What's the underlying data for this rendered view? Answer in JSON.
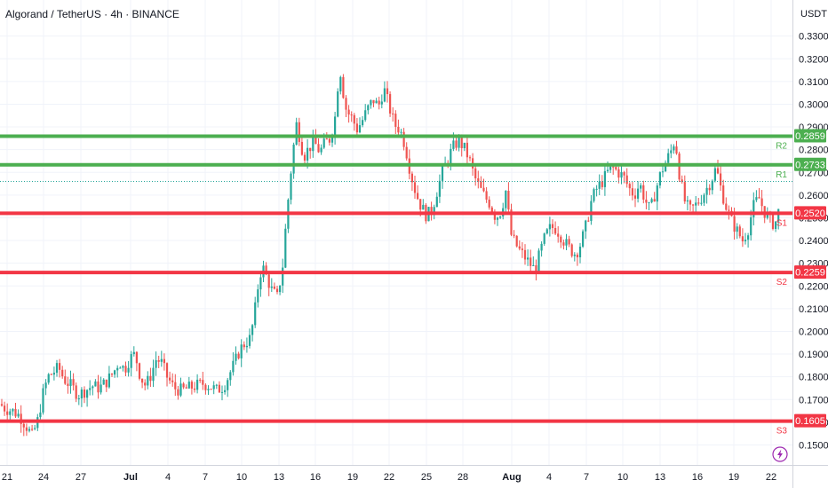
{
  "header": {
    "title": "Algorand / TetherUS · 4h · BINANCE",
    "currency": "USDT"
  },
  "colors": {
    "up": "#26a69a",
    "down": "#ef5350",
    "resistance": "#4caf50",
    "support": "#f23645",
    "grid": "#f0f3fa",
    "axis_text": "#131722",
    "alert_icon": "#9c27b0"
  },
  "icons": {
    "alert": "lightning-bolt-icon"
  },
  "chart_data": {
    "type": "candlestick",
    "title": "Algorand / TetherUS · 4h · BINANCE",
    "ylabel": "USDT",
    "ylim": [
      0.146,
      0.341
    ],
    "grid": true,
    "yticks": [
      "0.1500",
      "0.1600",
      "0.1700",
      "0.1800",
      "0.1900",
      "0.2000",
      "0.2100",
      "0.2200",
      "0.2300",
      "0.2400",
      "0.2500",
      "0.2600",
      "0.2700",
      "0.2800",
      "0.2900",
      "0.3000",
      "0.3100",
      "0.3200",
      "0.3300"
    ],
    "xticks": [
      {
        "label": "21",
        "bold": false
      },
      {
        "label": "24",
        "bold": false
      },
      {
        "label": "27",
        "bold": false
      },
      {
        "label": "Jul",
        "bold": true
      },
      {
        "label": "4",
        "bold": false
      },
      {
        "label": "7",
        "bold": false
      },
      {
        "label": "10",
        "bold": false
      },
      {
        "label": "13",
        "bold": false
      },
      {
        "label": "16",
        "bold": false
      },
      {
        "label": "19",
        "bold": false
      },
      {
        "label": "22",
        "bold": false
      },
      {
        "label": "25",
        "bold": false
      },
      {
        "label": "28",
        "bold": false
      },
      {
        "label": "Aug",
        "bold": true
      },
      {
        "label": "4",
        "bold": false
      },
      {
        "label": "7",
        "bold": false
      },
      {
        "label": "10",
        "bold": false
      },
      {
        "label": "13",
        "bold": false
      },
      {
        "label": "16",
        "bold": false
      },
      {
        "label": "19",
        "bold": false
      },
      {
        "label": "22",
        "bold": false
      }
    ],
    "levels": [
      {
        "name": "R2",
        "value": 0.2859,
        "label": "0.2859",
        "kind": "resistance"
      },
      {
        "name": "R1",
        "value": 0.2733,
        "label": "0.2733",
        "kind": "resistance"
      },
      {
        "name": "S1",
        "value": 0.252,
        "label": "0.2520",
        "kind": "support"
      },
      {
        "name": "S2",
        "value": 0.2259,
        "label": "0.2259",
        "kind": "support"
      },
      {
        "name": "S3",
        "value": 0.1605,
        "label": "0.1605",
        "kind": "support"
      }
    ],
    "last_price": 0.266,
    "price_path": [
      [
        0,
        0.168
      ],
      [
        6,
        0.166
      ],
      [
        14,
        0.165
      ],
      [
        22,
        0.163
      ],
      [
        30,
        0.158
      ],
      [
        36,
        0.154
      ],
      [
        42,
        0.16
      ],
      [
        48,
        0.172
      ],
      [
        54,
        0.18
      ],
      [
        60,
        0.182
      ],
      [
        66,
        0.184
      ],
      [
        72,
        0.179
      ],
      [
        80,
        0.176
      ],
      [
        88,
        0.172
      ],
      [
        96,
        0.174
      ],
      [
        104,
        0.176
      ],
      [
        112,
        0.175
      ],
      [
        120,
        0.178
      ],
      [
        128,
        0.182
      ],
      [
        134,
        0.187
      ],
      [
        140,
        0.183
      ],
      [
        146,
        0.188
      ],
      [
        152,
        0.19
      ],
      [
        158,
        0.18
      ],
      [
        164,
        0.176
      ],
      [
        170,
        0.181
      ],
      [
        176,
        0.188
      ],
      [
        182,
        0.186
      ],
      [
        188,
        0.18
      ],
      [
        196,
        0.175
      ],
      [
        204,
        0.174
      ],
      [
        212,
        0.175
      ],
      [
        220,
        0.176
      ],
      [
        228,
        0.177
      ],
      [
        236,
        0.176
      ],
      [
        244,
        0.174
      ],
      [
        252,
        0.176
      ],
      [
        258,
        0.181
      ],
      [
        264,
        0.186
      ],
      [
        270,
        0.192
      ],
      [
        276,
        0.195
      ],
      [
        282,
        0.197
      ],
      [
        288,
        0.212
      ],
      [
        292,
        0.225
      ],
      [
        296,
        0.228
      ],
      [
        300,
        0.224
      ],
      [
        306,
        0.218
      ],
      [
        312,
        0.215
      ],
      [
        318,
        0.228
      ],
      [
        322,
        0.248
      ],
      [
        326,
        0.265
      ],
      [
        330,
        0.28
      ],
      [
        334,
        0.292
      ],
      [
        338,
        0.284
      ],
      [
        342,
        0.277
      ],
      [
        348,
        0.281
      ],
      [
        354,
        0.283
      ],
      [
        360,
        0.279
      ],
      [
        366,
        0.283
      ],
      [
        372,
        0.285
      ],
      [
        378,
        0.296
      ],
      [
        382,
        0.318
      ],
      [
        386,
        0.306
      ],
      [
        390,
        0.297
      ],
      [
        396,
        0.294
      ],
      [
        402,
        0.289
      ],
      [
        408,
        0.293
      ],
      [
        414,
        0.298
      ],
      [
        420,
        0.302
      ],
      [
        426,
        0.299
      ],
      [
        432,
        0.307
      ],
      [
        438,
        0.299
      ],
      [
        444,
        0.291
      ],
      [
        450,
        0.289
      ],
      [
        456,
        0.282
      ],
      [
        462,
        0.27
      ],
      [
        468,
        0.261
      ],
      [
        474,
        0.255
      ],
      [
        480,
        0.251
      ],
      [
        486,
        0.253
      ],
      [
        492,
        0.262
      ],
      [
        498,
        0.27
      ],
      [
        504,
        0.276
      ],
      [
        510,
        0.281
      ],
      [
        516,
        0.284
      ],
      [
        522,
        0.281
      ],
      [
        528,
        0.276
      ],
      [
        534,
        0.268
      ],
      [
        540,
        0.263
      ],
      [
        546,
        0.259
      ],
      [
        552,
        0.256
      ],
      [
        558,
        0.25
      ],
      [
        564,
        0.253
      ],
      [
        570,
        0.263
      ],
      [
        574,
        0.244
      ],
      [
        578,
        0.24
      ],
      [
        584,
        0.236
      ],
      [
        590,
        0.233
      ],
      [
        596,
        0.23
      ],
      [
        602,
        0.227
      ],
      [
        606,
        0.232
      ],
      [
        612,
        0.24
      ],
      [
        618,
        0.245
      ],
      [
        624,
        0.246
      ],
      [
        630,
        0.243
      ],
      [
        636,
        0.239
      ],
      [
        642,
        0.236
      ],
      [
        648,
        0.234
      ],
      [
        654,
        0.239
      ],
      [
        660,
        0.247
      ],
      [
        666,
        0.258
      ],
      [
        672,
        0.263
      ],
      [
        678,
        0.266
      ],
      [
        684,
        0.27
      ],
      [
        690,
        0.272
      ],
      [
        696,
        0.27
      ],
      [
        702,
        0.268
      ],
      [
        708,
        0.263
      ],
      [
        714,
        0.26
      ],
      [
        720,
        0.265
      ],
      [
        726,
        0.258
      ],
      [
        732,
        0.253
      ],
      [
        738,
        0.262
      ],
      [
        744,
        0.27
      ],
      [
        750,
        0.275
      ],
      [
        756,
        0.28
      ],
      [
        760,
        0.285
      ],
      [
        764,
        0.271
      ],
      [
        770,
        0.258
      ],
      [
        776,
        0.253
      ],
      [
        782,
        0.255
      ],
      [
        788,
        0.258
      ],
      [
        794,
        0.262
      ],
      [
        800,
        0.266
      ],
      [
        806,
        0.272
      ],
      [
        812,
        0.262
      ],
      [
        818,
        0.254
      ],
      [
        824,
        0.248
      ],
      [
        830,
        0.244
      ],
      [
        836,
        0.24
      ],
      [
        842,
        0.245
      ],
      [
        848,
        0.255
      ],
      [
        854,
        0.259
      ],
      [
        860,
        0.253
      ],
      [
        866,
        0.249
      ],
      [
        872,
        0.247
      ],
      [
        876,
        0.252
      ],
      [
        880,
        0.266
      ]
    ]
  }
}
